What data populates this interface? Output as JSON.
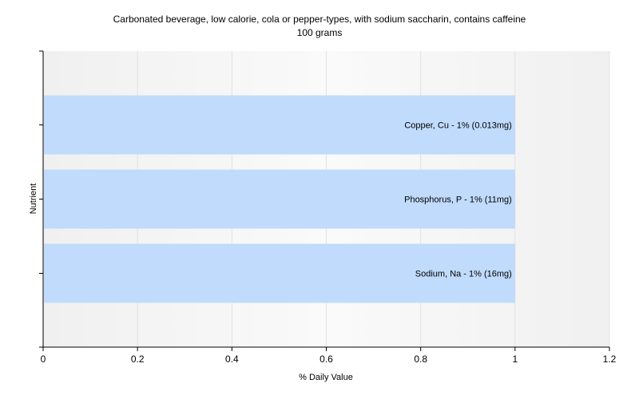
{
  "chart_data": {
    "type": "bar",
    "orientation": "horizontal",
    "title": "Carbonated beverage, low calorie, cola or pepper-types, with sodium saccharin, contains caffeine",
    "subtitle": "100 grams",
    "xlabel": "% Daily Value",
    "ylabel": "Nutrient",
    "xlim": [
      0,
      1.2
    ],
    "xticks": [
      0,
      0.2,
      0.4,
      0.6,
      0.8,
      1,
      1.2
    ],
    "xtick_labels": [
      "0",
      "0.2",
      "0.4",
      "0.6",
      "0.8",
      "1",
      "1.2"
    ],
    "grid": true,
    "bar_color": "#c0dbfc",
    "categories": [
      "Copper, Cu",
      "Phosphorus, P",
      "Sodium, Na"
    ],
    "values": [
      1,
      1,
      1
    ],
    "bar_labels": [
      "Copper, Cu - 1% (0.013mg)",
      "Phosphorus, P - 1% (11mg)",
      "Sodium, Na - 1% (16mg)"
    ]
  }
}
